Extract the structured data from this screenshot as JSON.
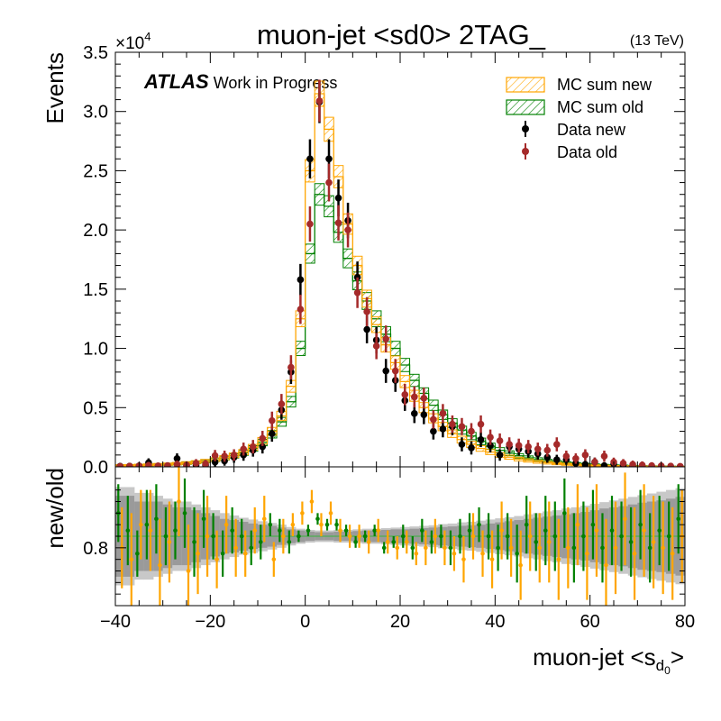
{
  "chart_data": {
    "type": "histogram",
    "title": "muon-jet <sd0> 2TAG_",
    "energy_label": "(13 TeV)",
    "atlas_label": "ATLAS",
    "atlas_sublabel": "Work in Progress",
    "xlabel": "muon-jet <s",
    "xlabel_sub": "d",
    "xlabel_subsub": "0",
    "xlabel_close": ">",
    "ylabel": "Events",
    "y_multiplier": "×10",
    "y_multiplier_exp": "4",
    "ratio_ylabel": "new/old",
    "xlim": [
      -40,
      80
    ],
    "ylim": [
      0,
      35000
    ],
    "ratio_ylim": [
      0.7,
      0.94
    ],
    "x_ticks": [
      "−40",
      "−20",
      "0",
      "20",
      "40",
      "60",
      "80"
    ],
    "y_ticks": [
      "0.0",
      "0.5",
      "1.0",
      "1.5",
      "2.0",
      "2.5",
      "3.0",
      "3.5"
    ],
    "ratio_y_ticks": [
      "0.8"
    ],
    "legend_position": "top-right",
    "colors": {
      "mc_new": "#ffa500",
      "mc_old": "#008000",
      "data_new": "#000000",
      "data_old": "#a52a2a",
      "band_dark": "#9a9a9a",
      "band_light": "#c8c8c8"
    },
    "legend": [
      "MC sum new",
      "MC sum old",
      "Data new",
      "Data old"
    ],
    "bin_edges": [
      -40,
      -38,
      -36,
      -34,
      -32,
      -30,
      -28,
      -26,
      -24,
      -22,
      -20,
      -18,
      -16,
      -14,
      -12,
      -10,
      -8,
      -6,
      -4,
      -2,
      0,
      2,
      4,
      6,
      8,
      10,
      12,
      14,
      16,
      18,
      20,
      22,
      24,
      26,
      28,
      30,
      32,
      34,
      36,
      38,
      40,
      42,
      44,
      46,
      48,
      50,
      52,
      54,
      56,
      58,
      60,
      62,
      64,
      66,
      68,
      70,
      72,
      74,
      76,
      78,
      80
    ],
    "series": [
      {
        "name": "MC sum new",
        "kind": "hist",
        "values": [
          120,
          130,
          150,
          170,
          200,
          230,
          270,
          330,
          400,
          500,
          620,
          780,
          980,
          1250,
          1650,
          2200,
          3000,
          4300,
          6800,
          12500,
          25000,
          31500,
          28500,
          24500,
          20500,
          17000,
          14200,
          12000,
          10300,
          8800,
          7200,
          6000,
          5000,
          4100,
          3400,
          2800,
          2300,
          1900,
          1550,
          1250,
          1000,
          820,
          660,
          540,
          430,
          350,
          280,
          220,
          180,
          140,
          110,
          90,
          70,
          55,
          45,
          35,
          28,
          22,
          18,
          14
        ]
      },
      {
        "name": "MC sum old",
        "kind": "hist",
        "values": [
          110,
          120,
          140,
          160,
          190,
          220,
          260,
          310,
          380,
          470,
          590,
          740,
          930,
          1180,
          1550,
          2050,
          2750,
          3800,
          5500,
          10000,
          18000,
          23000,
          22000,
          19800,
          17600,
          15700,
          14000,
          12500,
          11200,
          10000,
          8600,
          7300,
          6200,
          5200,
          4400,
          3700,
          3100,
          2600,
          2150,
          1750,
          1400,
          1150,
          930,
          760,
          620,
          500,
          400,
          320,
          260,
          210,
          170,
          135,
          110,
          90,
          70,
          55,
          45,
          35,
          28,
          22
        ]
      },
      {
        "name": "Data new",
        "kind": "points",
        "x": [
          -39,
          -37,
          -35,
          -33,
          -31,
          -29,
          -27,
          -25,
          -23,
          -21,
          -19,
          -17,
          -15,
          -13,
          -11,
          -9,
          -7,
          -5,
          -3,
          -1,
          1,
          3,
          5,
          7,
          9,
          11,
          13,
          15,
          17,
          19,
          21,
          23,
          25,
          27,
          29,
          31,
          33,
          35,
          37,
          39,
          41,
          43,
          45,
          47,
          49,
          51,
          53,
          55,
          57,
          59,
          61,
          63,
          65,
          67,
          69,
          71,
          73,
          75,
          77,
          79
        ],
        "values": [
          50,
          60,
          80,
          350,
          60,
          80,
          700,
          100,
          150,
          150,
          400,
          500,
          800,
          1000,
          1400,
          1700,
          2800,
          4800,
          8000,
          15800,
          26000,
          30800,
          26000,
          22700,
          20800,
          16000,
          11600,
          10700,
          8100,
          7300,
          5600,
          4500,
          4400,
          3000,
          3200,
          3400,
          1900,
          1600,
          2300,
          1800,
          1000,
          1700,
          1500,
          1300,
          1100,
          800,
          600,
          600,
          300,
          200,
          400,
          100,
          250,
          150,
          50,
          50,
          40,
          30,
          20,
          10
        ]
      },
      {
        "name": "Data old",
        "kind": "points",
        "x": [
          -39,
          -37,
          -35,
          -33,
          -31,
          -29,
          -27,
          -25,
          -23,
          -21,
          -19,
          -17,
          -15,
          -13,
          -11,
          -9,
          -7,
          -5,
          -3,
          -1,
          1,
          3,
          5,
          7,
          9,
          11,
          13,
          15,
          17,
          19,
          21,
          23,
          25,
          27,
          29,
          31,
          33,
          35,
          37,
          39,
          41,
          43,
          45,
          47,
          49,
          51,
          53,
          55,
          57,
          59,
          61,
          63,
          65,
          67,
          69,
          71,
          73,
          75,
          77,
          79
        ],
        "values": [
          30,
          50,
          70,
          120,
          80,
          100,
          200,
          150,
          300,
          250,
          950,
          900,
          1000,
          1500,
          1700,
          2400,
          3900,
          5300,
          8400,
          13300,
          20500,
          30900,
          24000,
          20600,
          20000,
          14700,
          13100,
          10200,
          10800,
          8100,
          6100,
          5900,
          5800,
          4000,
          4500,
          3600,
          3400,
          3000,
          3600,
          2500,
          2200,
          1900,
          1800,
          1700,
          1500,
          1400,
          1900,
          900,
          700,
          1000,
          400,
          900,
          400,
          300,
          200,
          150,
          100,
          80,
          60,
          40
        ]
      },
      {
        "name": "MC ratio",
        "kind": "ratio_points",
        "x": [
          -39,
          -37,
          -35,
          -33,
          -31,
          -29,
          -27,
          -25,
          -23,
          -21,
          -19,
          -17,
          -15,
          -13,
          -11,
          -9,
          -7,
          -5,
          -3,
          -1,
          1,
          3,
          5,
          7,
          9,
          11,
          13,
          15,
          17,
          19,
          21,
          23,
          25,
          27,
          29,
          31,
          33,
          35,
          37,
          39,
          41,
          43,
          45,
          47,
          49,
          51,
          53,
          55,
          57,
          59,
          61,
          63,
          65,
          67,
          69,
          71,
          73,
          75,
          77,
          79
        ],
        "values": [
          0.86,
          0.83,
          0.79,
          0.84,
          0.85,
          0.82,
          0.83,
          0.86,
          0.81,
          0.85,
          0.82,
          0.79,
          0.83,
          0.82,
          0.8,
          0.81,
          0.84,
          0.83,
          0.81,
          0.82,
          0.83,
          0.85,
          0.84,
          0.84,
          0.83,
          0.81,
          0.82,
          0.83,
          0.8,
          0.81,
          0.82,
          0.8,
          0.83,
          0.81,
          0.82,
          0.8,
          0.82,
          0.83,
          0.84,
          0.82,
          0.8,
          0.82,
          0.79,
          0.84,
          0.81,
          0.83,
          0.82,
          0.86,
          0.8,
          0.82,
          0.84,
          0.8,
          0.83,
          0.82,
          0.81,
          0.84,
          0.8,
          0.83,
          0.82,
          0.85
        ],
        "errors": [
          0.05,
          0.06,
          0.04,
          0.06,
          0.06,
          0.05,
          0.05,
          0.06,
          0.06,
          0.05,
          0.04,
          0.04,
          0.04,
          0.03,
          0.03,
          0.03,
          0.02,
          0.02,
          0.02,
          0.01,
          0.01,
          0.01,
          0.01,
          0.01,
          0.01,
          0.01,
          0.01,
          0.01,
          0.01,
          0.01,
          0.02,
          0.02,
          0.02,
          0.02,
          0.02,
          0.03,
          0.03,
          0.03,
          0.03,
          0.04,
          0.04,
          0.04,
          0.05,
          0.05,
          0.05,
          0.06,
          0.06,
          0.06,
          0.06,
          0.06,
          0.06,
          0.06,
          0.06,
          0.06,
          0.06,
          0.06,
          0.06,
          0.06,
          0.06,
          0.06
        ]
      },
      {
        "name": "Data ratio",
        "kind": "ratio_points",
        "x": [
          -39,
          -37,
          -35,
          -33,
          -31,
          -29,
          -27,
          -25,
          -23,
          -21,
          -19,
          -17,
          -15,
          -13,
          -11,
          -9,
          -7,
          -5,
          -3,
          -1,
          1,
          3,
          5,
          7,
          9,
          11,
          13,
          15,
          17,
          19,
          21,
          23,
          25,
          27,
          29,
          31,
          33,
          35,
          37,
          39,
          41,
          43,
          45,
          47,
          49,
          51,
          53,
          55,
          57,
          59,
          61,
          63,
          65,
          67,
          69,
          71,
          73,
          75,
          77,
          79
        ],
        "values": [
          0.8,
          0.78,
          0.84,
          0.83,
          0.77,
          0.81,
          0.88,
          0.76,
          0.79,
          0.82,
          0.78,
          0.84,
          0.8,
          0.79,
          0.83,
          0.85,
          0.78,
          0.82,
          0.84,
          0.86,
          0.88,
          0.84,
          0.86,
          0.83,
          0.82,
          0.82,
          0.81,
          0.83,
          0.81,
          0.8,
          0.81,
          0.79,
          0.8,
          0.82,
          0.8,
          0.79,
          0.78,
          0.82,
          0.79,
          0.78,
          0.83,
          0.8,
          0.77,
          0.82,
          0.8,
          0.81,
          0.78,
          0.8,
          0.84,
          0.79,
          0.83,
          0.77,
          0.8,
          0.85,
          0.79,
          0.83,
          0.81,
          0.8,
          0.79,
          0.82
        ],
        "errors": [
          0.07,
          0.08,
          0.06,
          0.07,
          0.08,
          0.07,
          0.06,
          0.08,
          0.07,
          0.07,
          0.05,
          0.05,
          0.05,
          0.04,
          0.04,
          0.04,
          0.03,
          0.03,
          0.02,
          0.02,
          0.02,
          0.02,
          0.02,
          0.02,
          0.02,
          0.02,
          0.02,
          0.02,
          0.02,
          0.02,
          0.02,
          0.02,
          0.03,
          0.03,
          0.03,
          0.03,
          0.04,
          0.04,
          0.04,
          0.05,
          0.05,
          0.05,
          0.06,
          0.06,
          0.06,
          0.07,
          0.07,
          0.07,
          0.07,
          0.08,
          0.08,
          0.08,
          0.08,
          0.08,
          0.08,
          0.08,
          0.08,
          0.08,
          0.08,
          0.08
        ]
      }
    ],
    "ratio_reference": 0.82,
    "band_dark_halfwidth": [
      0.07,
      0.07,
      0.06,
      0.06,
      0.06,
      0.055,
      0.05,
      0.05,
      0.045,
      0.04,
      0.035,
      0.03,
      0.028,
      0.025,
      0.022,
      0.02,
      0.018,
      0.015,
      0.012,
      0.01,
      0.008,
      0.007,
      0.007,
      0.008,
      0.008,
      0.009,
      0.01,
      0.01,
      0.011,
      0.012,
      0.012,
      0.013,
      0.014,
      0.015,
      0.016,
      0.017,
      0.018,
      0.019,
      0.02,
      0.022,
      0.024,
      0.026,
      0.028,
      0.03,
      0.032,
      0.034,
      0.036,
      0.038,
      0.04,
      0.042,
      0.045,
      0.048,
      0.05,
      0.052,
      0.055,
      0.058,
      0.06,
      0.062,
      0.065,
      0.068
    ],
    "band_light_halfwidth": [
      0.085,
      0.085,
      0.075,
      0.075,
      0.07,
      0.065,
      0.06,
      0.06,
      0.055,
      0.05,
      0.045,
      0.04,
      0.036,
      0.032,
      0.029,
      0.026,
      0.023,
      0.02,
      0.016,
      0.013,
      0.011,
      0.01,
      0.01,
      0.011,
      0.011,
      0.012,
      0.013,
      0.013,
      0.014,
      0.015,
      0.016,
      0.017,
      0.018,
      0.019,
      0.021,
      0.022,
      0.024,
      0.025,
      0.027,
      0.029,
      0.031,
      0.033,
      0.035,
      0.038,
      0.04,
      0.043,
      0.045,
      0.048,
      0.05,
      0.053,
      0.056,
      0.059,
      0.062,
      0.065,
      0.068,
      0.071,
      0.074,
      0.077,
      0.08,
      0.083
    ]
  }
}
